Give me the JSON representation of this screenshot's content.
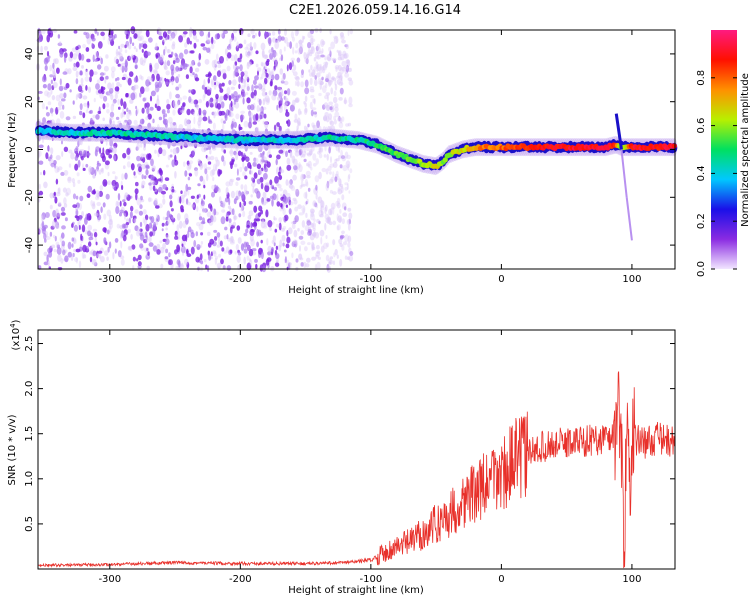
{
  "page_title": "C2E1.2026.059.14.16.G14",
  "chart_data": [
    {
      "type": "heatmap",
      "title": "C2E1.2026.059.14.16.G14",
      "xlabel": "Height of straight line (km)",
      "ylabel": "Frequency (Hz)",
      "xlim": [
        -355,
        133
      ],
      "ylim": [
        -50,
        50
      ],
      "xticks": [
        -300,
        -200,
        -100,
        0,
        100
      ],
      "yticks": [
        -40,
        -20,
        0,
        20,
        40
      ],
      "colorbar": {
        "label": "Normalized spectral amplitude",
        "range": [
          0.0,
          1.0
        ],
        "ticks": [
          0.0,
          0.2,
          0.4,
          0.6,
          0.8
        ],
        "tick_labels": [
          "0.0",
          "0.2",
          "0.4",
          "0.6",
          "0.8"
        ],
        "colors": [
          "#f2e6ff",
          "#8a2be2",
          "#1a10e8",
          "#00c8ff",
          "#00e060",
          "#b8f000",
          "#ff9000",
          "#ff1000",
          "#ff1a80"
        ]
      },
      "ridge": {
        "x": [
          -355,
          -330,
          -300,
          -270,
          -240,
          -200,
          -160,
          -130,
          -110,
          -95,
          -80,
          -70,
          -60,
          -50,
          -45,
          -40,
          -30,
          -20,
          0,
          20,
          50,
          80,
          88,
          92,
          100,
          133
        ],
        "y": [
          8,
          7,
          7,
          6,
          5,
          4,
          4,
          5,
          4,
          2,
          -2,
          -4,
          -6,
          -7,
          -5,
          -2,
          0,
          1,
          1,
          1,
          1,
          1,
          2,
          1,
          1,
          1
        ],
        "amplitude": [
          0.4,
          0.42,
          0.45,
          0.45,
          0.4,
          0.4,
          0.4,
          0.45,
          0.45,
          0.5,
          0.55,
          0.55,
          0.6,
          0.65,
          0.6,
          0.6,
          0.65,
          0.75,
          0.8,
          0.85,
          0.9,
          0.9,
          0.85,
          0.5,
          0.9,
          0.9
        ]
      },
      "spur": {
        "x": [
          88,
          92,
          96,
          100
        ],
        "y": [
          15,
          0,
          -20,
          -38
        ]
      }
    },
    {
      "type": "line",
      "title": "",
      "xlabel": "Height of straight line (km)",
      "ylabel": "SNR (10 * v/v)",
      "y_multiplier_label": "(x10",
      "y_multiplier_exponent": "4",
      "xlim": [
        -355,
        133
      ],
      "ylim": [
        0,
        2.65
      ],
      "xticks": [
        -300,
        -200,
        -100,
        0,
        100
      ],
      "yticks": [
        0.5,
        1.0,
        1.5,
        2.0,
        2.5
      ],
      "ytick_labels": [
        "0.5",
        "1.0",
        "1.5",
        "2.0",
        "2.5"
      ],
      "color": "#e8302a",
      "series": [
        {
          "name": "SNR",
          "x": [
            -355,
            -300,
            -250,
            -200,
            -150,
            -120,
            -100,
            -90,
            -80,
            -70,
            -60,
            -50,
            -40,
            -30,
            -20,
            -10,
            0,
            10,
            20,
            30,
            40,
            50,
            60,
            70,
            80,
            88,
            90,
            92,
            94,
            96,
            98,
            100,
            105,
            110,
            120,
            133
          ],
          "y": [
            0.04,
            0.05,
            0.07,
            0.06,
            0.06,
            0.07,
            0.1,
            0.18,
            0.25,
            0.3,
            0.4,
            0.5,
            0.6,
            0.75,
            0.85,
            0.95,
            1.05,
            1.2,
            1.28,
            1.35,
            1.38,
            1.4,
            1.42,
            1.43,
            1.45,
            1.48,
            2.0,
            1.2,
            0.15,
            1.8,
            1.0,
            1.4,
            1.45,
            1.4,
            1.45,
            1.4
          ]
        }
      ]
    }
  ]
}
